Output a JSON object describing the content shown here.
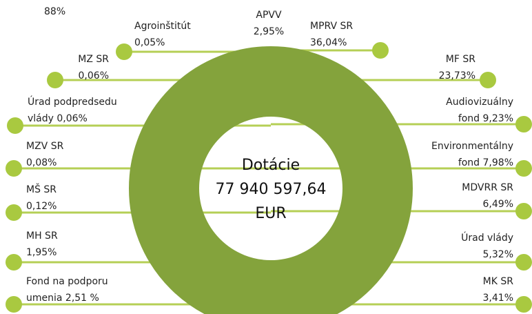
{
  "corner_note": "88%",
  "center": {
    "lines": [
      "Dotácie",
      "77 940 597,64",
      "EUR"
    ]
  },
  "items": [
    {
      "lines": [
        "APVV",
        "2,95%"
      ]
    },
    {
      "lines": [
        "Agroinštitút",
        "0,05%"
      ]
    },
    {
      "lines": [
        "MPRV SR",
        "36,04%"
      ]
    },
    {
      "lines": [
        "MZ SR",
        "0,06%"
      ]
    },
    {
      "lines": [
        "MF SR",
        "23,73%"
      ]
    },
    {
      "lines": [
        "Úrad podpredsedu",
        "vlády 0,06%"
      ]
    },
    {
      "lines": [
        "Audiovizuálny",
        "fond 9,23%"
      ]
    },
    {
      "lines": [
        "MZV SR",
        "0,08%"
      ]
    },
    {
      "lines": [
        "Environmentálny",
        "fond 7,98%"
      ]
    },
    {
      "lines": [
        "MŠ SR",
        "0,12%"
      ]
    },
    {
      "lines": [
        "MDVRR SR",
        "6,49%"
      ]
    },
    {
      "lines": [
        "MH SR",
        "1,95%"
      ]
    },
    {
      "lines": [
        "Úrad vlády",
        "5,32%"
      ]
    },
    {
      "lines": [
        "Fond na podporu",
        "umenia 2,51 %"
      ]
    },
    {
      "lines": [
        "MK SR",
        "3,41%"
      ]
    }
  ]
}
